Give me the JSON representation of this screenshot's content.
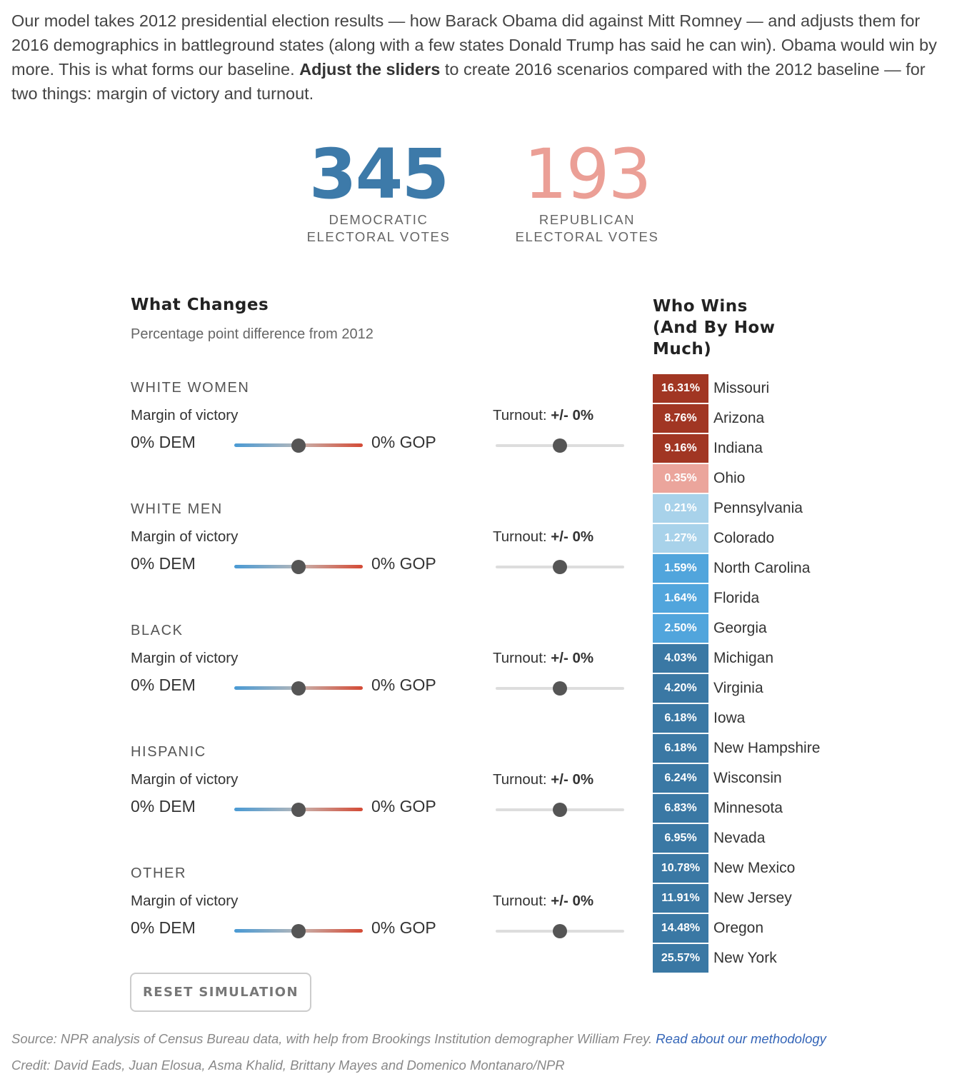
{
  "intro": {
    "part1": "Our model takes 2012 presidential election results — how Barack Obama did against Mitt Romney — and adjusts them for 2016 demographics in battleground states (along with a few states Donald Trump has said he can win). Obama would win by more. This is what forms our baseline. ",
    "bold": "Adjust the sliders",
    "part2": " to create 2016 scenarios compared with the 2012 baseline — for two things: margin of victory and turnout."
  },
  "tally": {
    "dem_votes": "345",
    "dem_label_1": "DEMOCRATIC",
    "dem_label_2": "ELECTORAL VOTES",
    "gop_votes": "193",
    "gop_label_1": "REPUBLICAN",
    "gop_label_2": "ELECTORAL VOTES"
  },
  "what_changes": {
    "title": "What Changes",
    "subtitle": "Percentage point difference from 2012"
  },
  "who_wins": {
    "title_1": "Who Wins",
    "title_2": "(And By How",
    "title_3": "Much)"
  },
  "groups": [
    {
      "name": "WHITE WOMEN",
      "margin_label": "Margin of victory",
      "dem_value": "0% DEM",
      "gop_value": "0% GOP",
      "turnout_label": "Turnout:",
      "turnout_value": "+/- 0%",
      "margin_level": 0.5,
      "turnout_level": 0.5
    },
    {
      "name": "WHITE MEN",
      "margin_label": "Margin of victory",
      "dem_value": "0% DEM",
      "gop_value": "0% GOP",
      "turnout_label": "Turnout:",
      "turnout_value": "+/- 0%",
      "margin_level": 0.5,
      "turnout_level": 0.5
    },
    {
      "name": "BLACK",
      "margin_label": "Margin of victory",
      "dem_value": "0% DEM",
      "gop_value": "0% GOP",
      "turnout_label": "Turnout:",
      "turnout_value": "+/- 0%",
      "margin_level": 0.5,
      "turnout_level": 0.5
    },
    {
      "name": "HISPANIC",
      "margin_label": "Margin of victory",
      "dem_value": "0% DEM",
      "gop_value": "0% GOP",
      "turnout_label": "Turnout:",
      "turnout_value": "+/- 0%",
      "margin_level": 0.5,
      "turnout_level": 0.5
    },
    {
      "name": "OTHER",
      "margin_label": "Margin of victory",
      "dem_value": "0% DEM",
      "gop_value": "0% GOP",
      "turnout_label": "Turnout:",
      "turnout_value": "+/- 0%",
      "margin_level": 0.5,
      "turnout_level": 0.5
    }
  ],
  "reset_label": "RESET SIMULATION",
  "states": [
    {
      "name": "Missouri",
      "margin": "16.31%",
      "color": "#a13623"
    },
    {
      "name": "Arizona",
      "margin": "8.76%",
      "color": "#a13623"
    },
    {
      "name": "Indiana",
      "margin": "9.16%",
      "color": "#a13623"
    },
    {
      "name": "Ohio",
      "margin": "0.35%",
      "color": "#eba59c"
    },
    {
      "name": "Pennsylvania",
      "margin": "0.21%",
      "color": "#a8d2ea"
    },
    {
      "name": "Colorado",
      "margin": "1.27%",
      "color": "#a8d2ea"
    },
    {
      "name": "North Carolina",
      "margin": "1.59%",
      "color": "#51a5dc"
    },
    {
      "name": "Florida",
      "margin": "1.64%",
      "color": "#51a5dc"
    },
    {
      "name": "Georgia",
      "margin": "2.50%",
      "color": "#51a5dc"
    },
    {
      "name": "Michigan",
      "margin": "4.03%",
      "color": "#3a78a4"
    },
    {
      "name": "Virginia",
      "margin": "4.20%",
      "color": "#3a78a4"
    },
    {
      "name": "Iowa",
      "margin": "6.18%",
      "color": "#3a78a4"
    },
    {
      "name": "New Hampshire",
      "margin": "6.18%",
      "color": "#3a78a4"
    },
    {
      "name": "Wisconsin",
      "margin": "6.24%",
      "color": "#3a78a4"
    },
    {
      "name": "Minnesota",
      "margin": "6.83%",
      "color": "#3a78a4"
    },
    {
      "name": "Nevada",
      "margin": "6.95%",
      "color": "#3a78a4"
    },
    {
      "name": "New Mexico",
      "margin": "10.78%",
      "color": "#3a78a4"
    },
    {
      "name": "New Jersey",
      "margin": "11.91%",
      "color": "#3a78a4"
    },
    {
      "name": "Oregon",
      "margin": "14.48%",
      "color": "#3a78a4"
    },
    {
      "name": "New York",
      "margin": "25.57%",
      "color": "#3a78a4"
    }
  ],
  "footer": {
    "source": "Source: NPR analysis of Census Bureau data, with help from Brookings Institution demographer William Frey. ",
    "methodology_link": "Read about our methodology",
    "credit": "Credit: David Eads, Juan Elosua, Asma Khalid, Brittany Mayes and Domenico Montanaro/NPR"
  }
}
